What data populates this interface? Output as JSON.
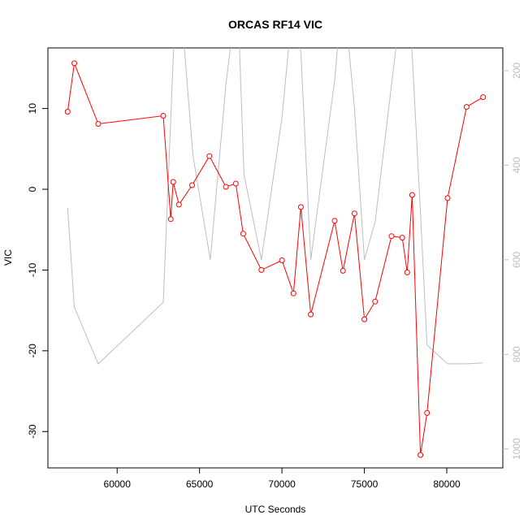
{
  "chart_data": {
    "type": "line",
    "title": "ORCAS RF14 VIC",
    "xlabel": "UTC Seconds",
    "ylabel": "VIC",
    "xlim": [
      55800,
      83400
    ],
    "ylim": [
      -34.5,
      17.5
    ],
    "x_ticks": [
      60000,
      65000,
      70000,
      75000,
      80000
    ],
    "x_tick_labels": [
      "60000",
      "65000",
      "70000",
      "75000",
      "80000"
    ],
    "y_ticks": [
      -30,
      -20,
      -10,
      0,
      10
    ],
    "y_tick_labels": [
      "-30",
      "-20",
      "-10",
      "0",
      "10"
    ],
    "y2lim": [
      1040,
      152
    ],
    "y2_ticks": [
      200,
      400,
      600,
      800,
      1000
    ],
    "y2_tick_labels": [
      "200",
      "400",
      "600",
      "800",
      "1000"
    ],
    "grid": false,
    "series": [
      {
        "color": "#ff0000",
        "markers": true,
        "x": [
          57000,
          57400,
          58850,
          62800,
          63250,
          63400,
          63750,
          64550,
          65600,
          66600,
          67200,
          67650,
          68750,
          70000,
          70700,
          71150,
          71750,
          73200,
          73700,
          74400,
          75000,
          75650,
          76650,
          77300,
          77600,
          77900,
          78400,
          78800,
          80050,
          81200,
          82200
        ],
        "y": [
          9.6,
          15.6,
          8.1,
          9.1,
          -3.7,
          0.9,
          -1.9,
          0.5,
          4.1,
          0.3,
          0.7,
          -5.5,
          -10.0,
          -8.8,
          -12.9,
          -2.2,
          -15.5,
          -3.9,
          -10.1,
          -3.0,
          -16.1,
          -13.9,
          -5.8,
          -6.0,
          -10.3,
          -0.7,
          -32.9,
          -27.7,
          -1.1,
          10.2,
          11.4
        ]
      },
      {
        "color": "#bebebe",
        "markers": false,
        "axis": "right",
        "x": [
          57000,
          57400,
          58850,
          62800,
          63550,
          64000,
          64600,
          65650,
          66600,
          67300,
          67700,
          68750,
          70000,
          70600,
          71150,
          71750,
          73200,
          73700,
          74400,
          75000,
          75650,
          76650,
          77300,
          77700,
          78400,
          78800,
          80050,
          81200,
          82200
        ],
        "y": [
          490,
          700,
          820,
          690,
          50,
          120,
          380,
          600,
          230,
          30,
          420,
          600,
          300,
          80,
          160,
          600,
          220,
          20,
          280,
          600,
          520,
          230,
          40,
          30,
          500,
          780,
          820,
          820,
          818
        ]
      }
    ]
  }
}
